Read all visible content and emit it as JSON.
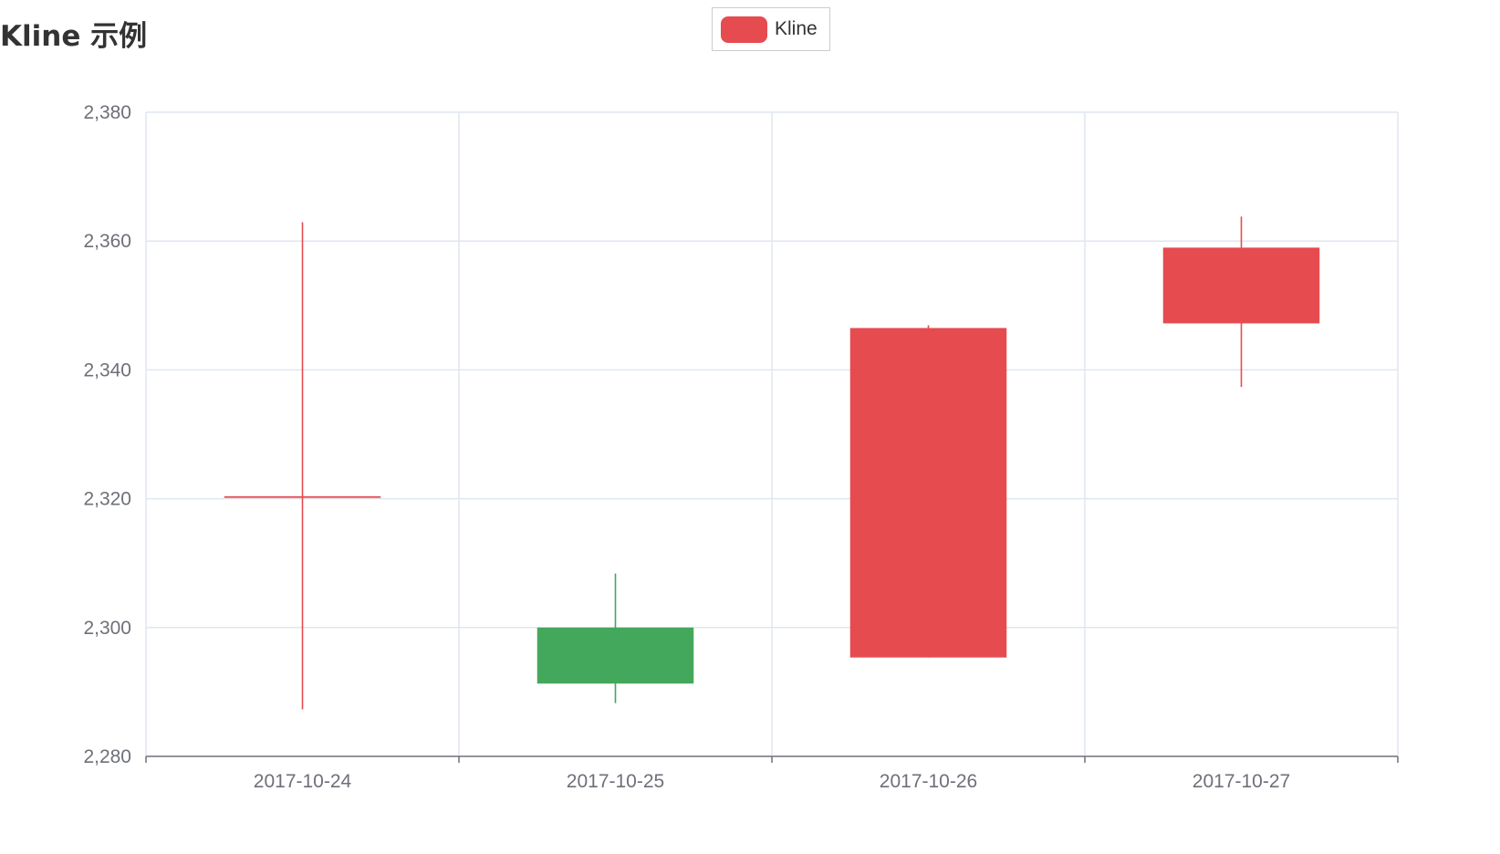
{
  "title": "Kline 示例",
  "legend": {
    "label": "Kline",
    "swatch_color": "#e64b4f",
    "position": "top-center"
  },
  "colors": {
    "up": "#e64b4f",
    "down": "#43a75c",
    "grid": "#e0e6f1",
    "axis": "#6e7079",
    "tick_text": "#6e7079"
  },
  "chart_data": {
    "type": "candlestick",
    "title": "Kline 示例",
    "categories": [
      "2017-10-24",
      "2017-10-25",
      "2017-10-26",
      "2017-10-27"
    ],
    "series": [
      {
        "name": "Kline",
        "values": [
          {
            "open": 2320.26,
            "close": 2320.26,
            "low": 2287.3,
            "high": 2362.94
          },
          {
            "open": 2300.0,
            "close": 2291.3,
            "low": 2288.26,
            "high": 2308.38
          },
          {
            "open": 2295.35,
            "close": 2346.5,
            "low": 2295.35,
            "high": 2346.92
          },
          {
            "open": 2347.22,
            "close": 2358.98,
            "low": 2337.35,
            "high": 2363.8
          }
        ]
      }
    ],
    "ylim": [
      2280,
      2380
    ],
    "yticks": [
      2280,
      2300,
      2320,
      2340,
      2360,
      2380
    ],
    "ytick_labels": [
      "2,280",
      "2,300",
      "2,320",
      "2,340",
      "2,360",
      "2,380"
    ],
    "xlabel": "",
    "ylabel": "",
    "grid": true
  }
}
